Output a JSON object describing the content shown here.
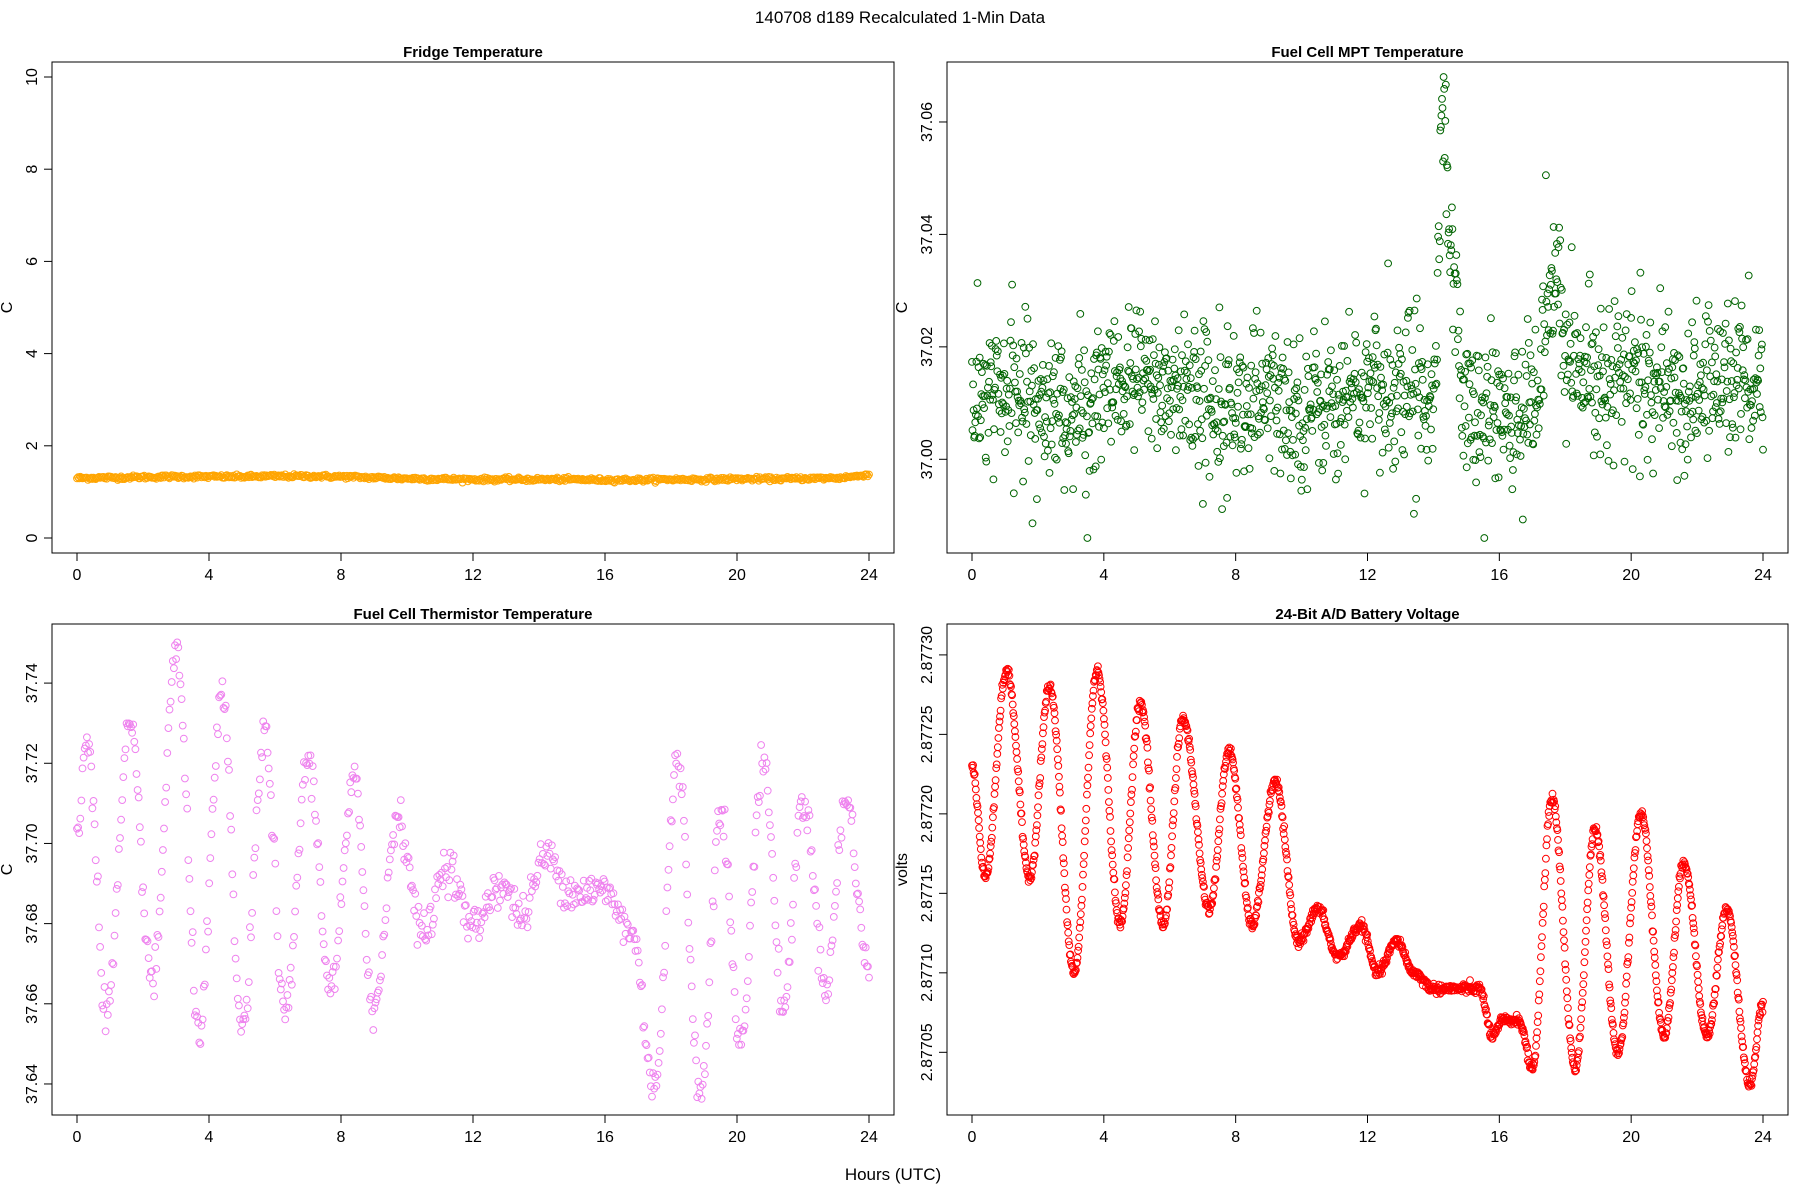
{
  "suptitle": "140708   d189   Recalculated 1-Min Data",
  "xlabel": "Hours (UTC)",
  "chart_data": [
    {
      "type": "scatter",
      "title": "Fridge Temperature",
      "ylabel": "C",
      "color": "#FFA500",
      "xlim": [
        0,
        24
      ],
      "ylim": [
        0,
        10
      ],
      "xticks": [
        "0",
        "4",
        "8",
        "12",
        "16",
        "20",
        "24"
      ],
      "yticks": [
        "0",
        "2",
        "4",
        "6",
        "8",
        "10"
      ],
      "x": [
        0,
        1,
        2,
        3,
        4,
        5,
        6,
        7,
        8,
        9,
        10,
        11,
        12,
        13,
        14,
        15,
        16,
        17,
        18,
        19,
        20,
        21,
        22,
        23,
        23.5,
        24
      ],
      "y": [
        1.3,
        1.31,
        1.32,
        1.33,
        1.33,
        1.33,
        1.34,
        1.34,
        1.33,
        1.31,
        1.29,
        1.28,
        1.27,
        1.27,
        1.27,
        1.27,
        1.26,
        1.26,
        1.27,
        1.27,
        1.28,
        1.28,
        1.29,
        1.3,
        1.33,
        1.38
      ]
    },
    {
      "type": "scatter",
      "title": "Fuel Cell MPT Temperature",
      "ylabel": "C",
      "color": "#006400",
      "xlim": [
        0,
        24
      ],
      "ylim": [
        36.986,
        37.068
      ],
      "xticks": [
        "0",
        "4",
        "8",
        "12",
        "16",
        "20",
        "24"
      ],
      "yticks": [
        "37.00",
        "37.02",
        "37.04",
        "37.06"
      ],
      "x": [
        0,
        1,
        2,
        3,
        4,
        5,
        6,
        7,
        8,
        9,
        10,
        11,
        12,
        13,
        14,
        14.3,
        14.5,
        15,
        16,
        17,
        17.8,
        18,
        19,
        20,
        21,
        22,
        23,
        24
      ],
      "y": [
        37.01,
        37.011,
        37.012,
        37.008,
        37.011,
        37.014,
        37.013,
        37.011,
        37.01,
        37.01,
        37.009,
        37.011,
        37.012,
        37.012,
        37.013,
        37.064,
        37.039,
        37.009,
        37.008,
        37.01,
        37.034,
        37.016,
        37.016,
        37.015,
        37.011,
        37.012,
        37.016,
        37.013
      ]
    },
    {
      "type": "scatter",
      "title": "Fuel Cell Thermistor Temperature",
      "ylabel": "C",
      "color": "#EE82EE",
      "xlim": [
        0,
        24
      ],
      "ylim": [
        37.636,
        37.751
      ],
      "xticks": [
        "0",
        "4",
        "8",
        "12",
        "16",
        "20",
        "24"
      ],
      "yticks": [
        "37.64",
        "37.66",
        "37.68",
        "37.70",
        "37.72",
        "37.74"
      ],
      "x": [
        0,
        0.3,
        0.9,
        1.6,
        2.3,
        3.0,
        3.7,
        4.4,
        5.0,
        5.7,
        6.3,
        7.0,
        7.7,
        8.4,
        9.0,
        9.7,
        10.5,
        11.2,
        12.0,
        12.8,
        13.5,
        14.2,
        15.0,
        16.0,
        16.8,
        17.5,
        18.2,
        18.9,
        19.5,
        20.1,
        20.8,
        21.4,
        22.0,
        22.7,
        23.3,
        24
      ],
      "y": [
        37.7,
        37.727,
        37.658,
        37.728,
        37.665,
        37.748,
        37.654,
        37.736,
        37.653,
        37.727,
        37.656,
        37.721,
        37.664,
        37.715,
        37.658,
        37.707,
        37.677,
        37.695,
        37.679,
        37.69,
        37.682,
        37.697,
        37.688,
        37.688,
        37.678,
        37.64,
        37.72,
        37.637,
        37.71,
        37.65,
        37.721,
        37.659,
        37.711,
        37.665,
        37.711,
        37.668
      ]
    },
    {
      "type": "scatter",
      "title": "24-Bit A/D Battery Voltage",
      "ylabel": "volts",
      "color": "#FF0000",
      "xlim": [
        0,
        24
      ],
      "ylim": [
        2.87702,
        2.87731
      ],
      "xticks": [
        "0",
        "4",
        "8",
        "12",
        "16",
        "20",
        "24"
      ],
      "yticks": [
        "2.87705",
        "2.87710",
        "2.87715",
        "2.87720",
        "2.87725",
        "2.87730"
      ],
      "x": [
        0,
        0.4,
        1.05,
        1.75,
        2.35,
        3.1,
        3.8,
        4.5,
        5.1,
        5.8,
        6.4,
        7.2,
        7.8,
        8.5,
        9.2,
        9.9,
        10.5,
        11.1,
        11.8,
        12.3,
        12.9,
        13.4,
        14.0,
        14.5,
        15.0,
        15.4,
        15.8,
        16.1,
        16.3,
        16.6,
        17.0,
        17.6,
        18.3,
        18.9,
        19.6,
        20.3,
        21.0,
        21.6,
        22.3,
        22.9,
        23.6,
        24.0
      ],
      "y": [
        2.87723,
        2.87716,
        2.87729,
        2.87716,
        2.87728,
        2.8771,
        2.87729,
        2.87713,
        2.87727,
        2.87713,
        2.87726,
        2.87714,
        2.87724,
        2.87713,
        2.87722,
        2.87712,
        2.87714,
        2.87711,
        2.87713,
        2.8771,
        2.87712,
        2.8771,
        2.87709,
        2.87709,
        2.87709,
        2.87709,
        2.87706,
        2.87707,
        2.87707,
        2.87707,
        2.87704,
        2.87721,
        2.87704,
        2.87719,
        2.87705,
        2.8772,
        2.87706,
        2.87717,
        2.87706,
        2.87714,
        2.87703,
        2.87708
      ]
    }
  ]
}
